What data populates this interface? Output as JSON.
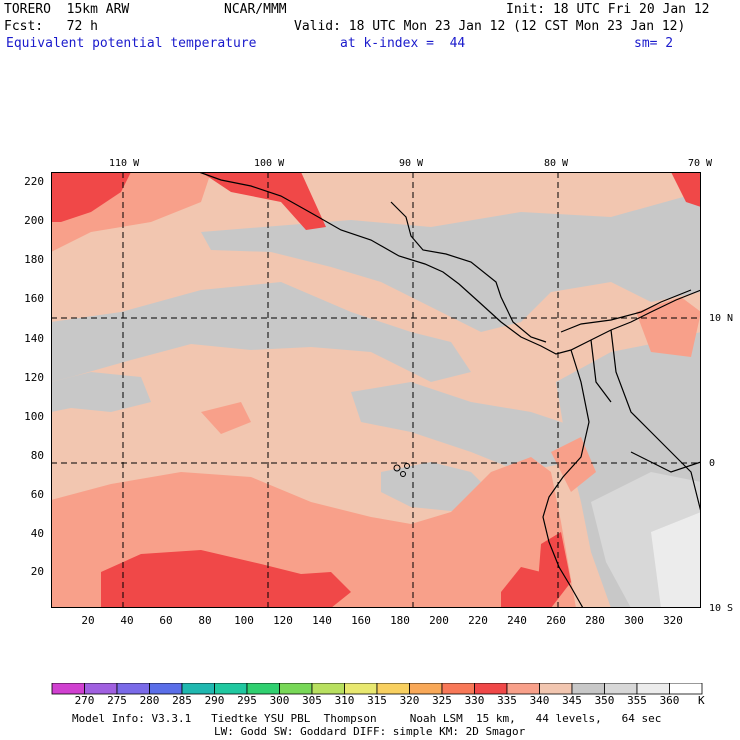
{
  "header": {
    "model": "TORERO  15km ARW",
    "center": "NCAR/MMM",
    "init": "Init: 18 UTC Fri 20 Jan 12",
    "fcst": "Fcst:   72 h",
    "valid": "Valid: 18 UTC Mon 23 Jan 12 (12 CST Mon 23 Jan 12)",
    "field": "Equivalent potential temperature",
    "level": "at k-index =  44",
    "smooth": "sm= 2"
  },
  "map": {
    "lon_labels": [
      "110 W",
      "100 W",
      "90 W",
      "80 W",
      "70 W"
    ],
    "lat_labels": [
      "10 N",
      "0",
      "10 S"
    ],
    "y_ticks": [
      "20",
      "40",
      "60",
      "80",
      "100",
      "120",
      "140",
      "160",
      "180",
      "200",
      "220"
    ],
    "x_ticks": [
      "20",
      "40",
      "60",
      "80",
      "100",
      "120",
      "140",
      "160",
      "180",
      "200",
      "220",
      "240",
      "260",
      "280",
      "300",
      "320"
    ]
  },
  "colorbar": {
    "labels": [
      "270",
      "275",
      "280",
      "285",
      "290",
      "295",
      "300",
      "305",
      "310",
      "315",
      "320",
      "325",
      "330",
      "335",
      "340",
      "345",
      "350",
      "355",
      "360"
    ],
    "unit": "K",
    "colors": [
      "#d040d0",
      "#a060e0",
      "#7a6ae8",
      "#5a6ee8",
      "#20b8b0",
      "#20c8a0",
      "#30d070",
      "#78d858",
      "#b8e060",
      "#e8e870",
      "#f8d060",
      "#f8a858",
      "#f87858",
      "#f04848",
      "#f8a08a",
      "#f2c6b0",
      "#c8c8c8",
      "#d8d8d8",
      "#ececec",
      "#ffffff"
    ]
  },
  "footer": {
    "line1": "Model Info: V3.3.1   Tiedtke YSU PBL  Thompson     Noah LSM  15 km,   44 levels,   64 sec",
    "line2": "LW: Godd SW: Goddard DIFF: simple KM: 2D Smagor"
  }
}
